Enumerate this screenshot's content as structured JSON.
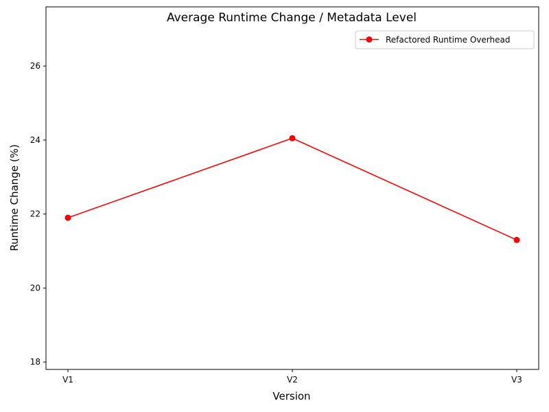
{
  "chart_data": {
    "type": "line",
    "title": "Average Runtime Change / Metadata Level",
    "xlabel": "Version",
    "ylabel": "Runtime Change (%)",
    "categories": [
      "V1",
      "V2",
      "V3"
    ],
    "ylim": [
      17.8,
      27.6
    ],
    "yticks": [
      18,
      20,
      22,
      24,
      26
    ],
    "grid": false,
    "legend_position": "top-right",
    "series": [
      {
        "name": "Refactored Runtime Overhead",
        "color": "#ff0000",
        "marker": "circle",
        "values": [
          21.9,
          24.05,
          21.3
        ]
      }
    ]
  }
}
